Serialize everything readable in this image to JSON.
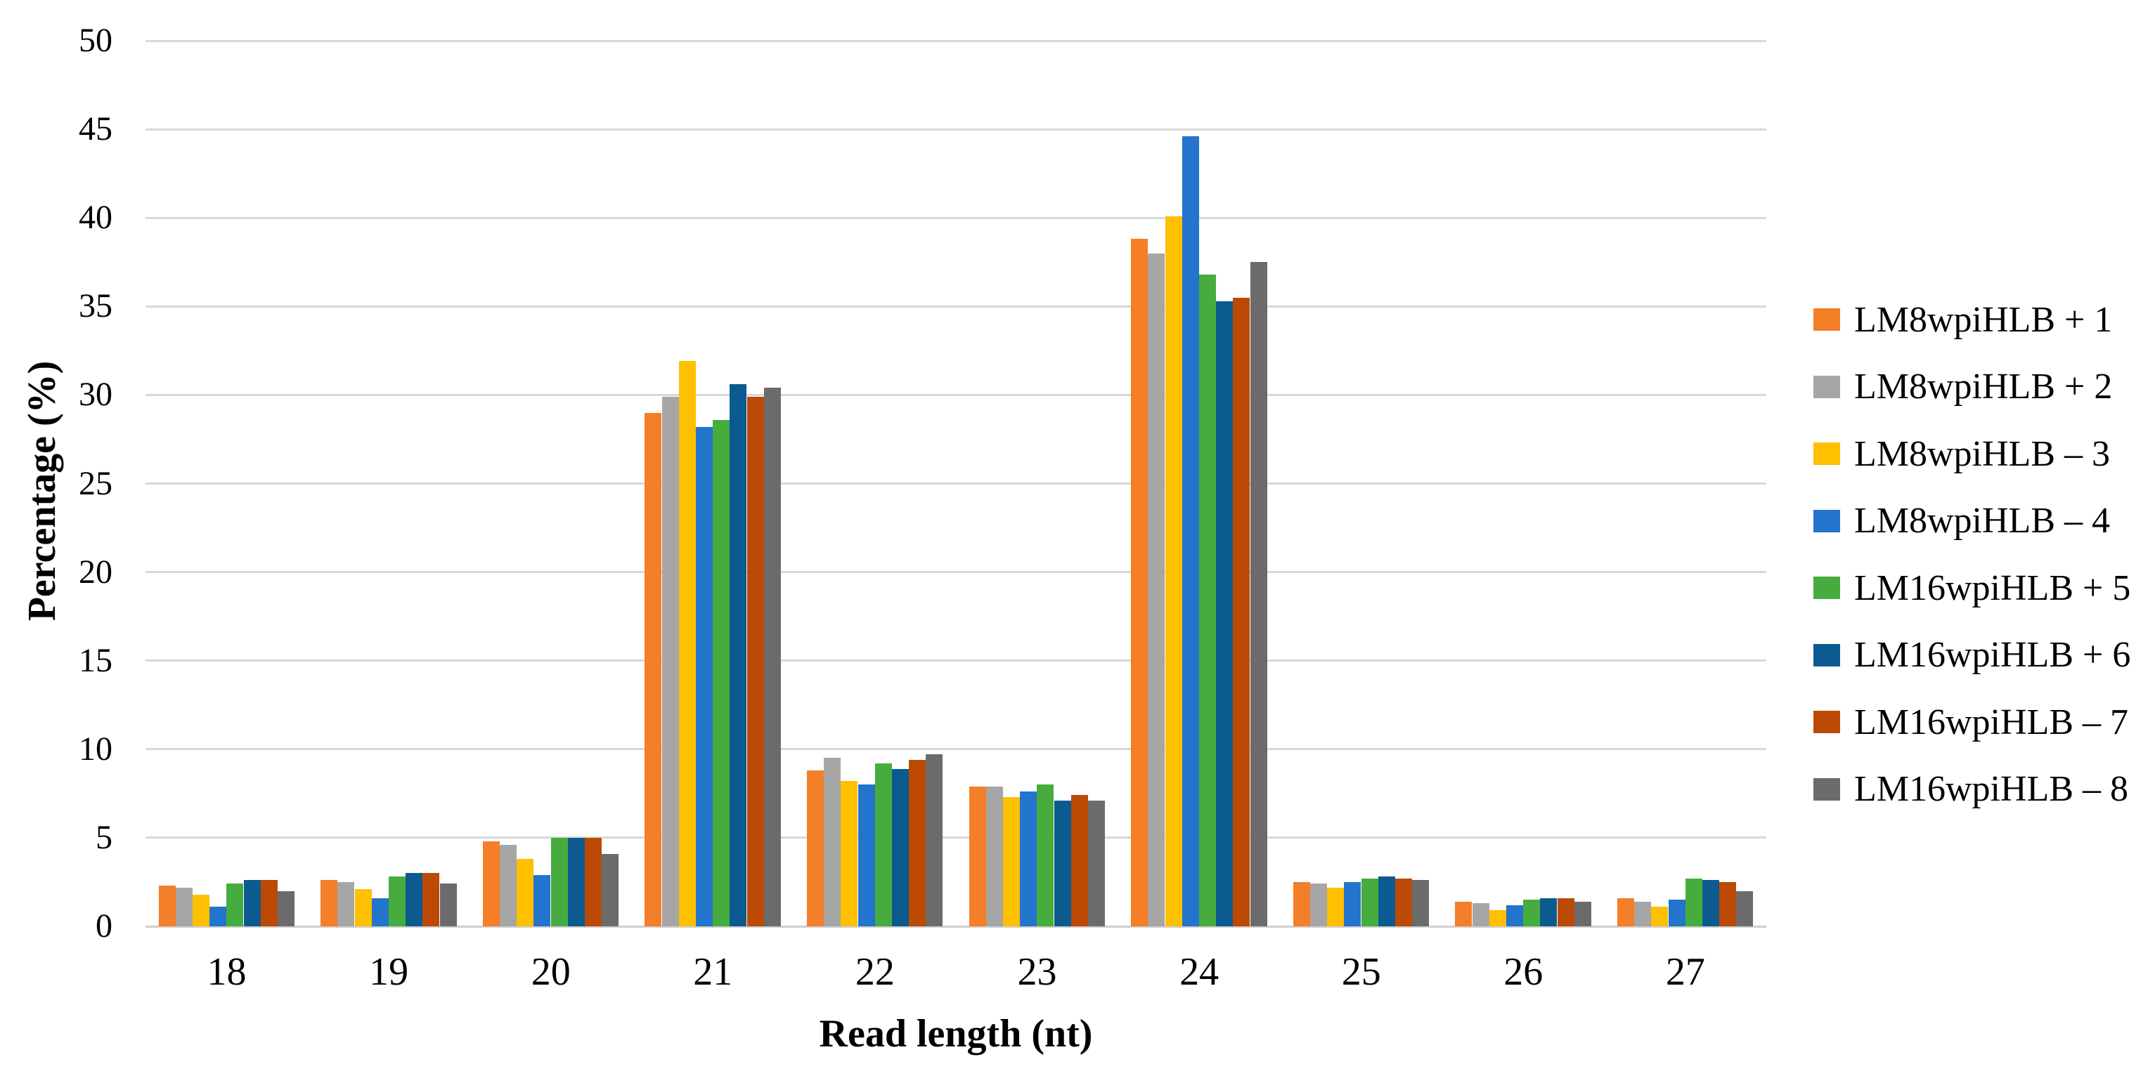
{
  "figure": {
    "background": "#ffffff",
    "gridline_color": "#d9d9d9",
    "text_color": "#000000"
  },
  "chart_data": {
    "type": "bar",
    "title": "",
    "xlabel": "Read length (nt)",
    "ylabel": "Percentage (%)",
    "ylim": [
      0,
      50
    ],
    "ytick_step": 5,
    "ytick_labels": [
      "0",
      "5",
      "10",
      "15",
      "20",
      "25",
      "30",
      "35",
      "40",
      "45",
      "50"
    ],
    "grid": true,
    "legend_position": "right",
    "categories": [
      "18",
      "19",
      "20",
      "21",
      "22",
      "23",
      "24",
      "25",
      "26",
      "27"
    ],
    "series": [
      {
        "name": "LM8wpiHLB + 1",
        "color": "#F57E28",
        "values": [
          2.3,
          2.6,
          4.8,
          29.0,
          8.8,
          7.9,
          38.8,
          2.5,
          1.4,
          1.6
        ]
      },
      {
        "name": "LM8wpiHLB + 2",
        "color": "#A6A6A6",
        "values": [
          2.2,
          2.5,
          4.6,
          29.9,
          9.5,
          7.9,
          38.0,
          2.4,
          1.3,
          1.4
        ]
      },
      {
        "name": "LM8wpiHLB – 3",
        "color": "#FFC000",
        "values": [
          1.8,
          2.1,
          3.8,
          31.9,
          8.2,
          7.3,
          40.1,
          2.2,
          0.9,
          1.1
        ]
      },
      {
        "name": "LM8wpiHLB – 4",
        "color": "#2374CC",
        "values": [
          1.1,
          1.6,
          2.9,
          28.2,
          8.0,
          7.6,
          44.6,
          2.5,
          1.2,
          1.5
        ]
      },
      {
        "name": "LM16wpiHLB + 5",
        "color": "#47AC3E",
        "values": [
          2.4,
          2.8,
          5.0,
          28.6,
          9.2,
          8.0,
          36.8,
          2.7,
          1.5,
          2.7
        ]
      },
      {
        "name": "LM16wpiHLB + 6",
        "color": "#0B5A90",
        "values": [
          2.6,
          3.0,
          5.0,
          30.6,
          8.9,
          7.1,
          35.3,
          2.8,
          1.6,
          2.6
        ]
      },
      {
        "name": "LM16wpiHLB – 7",
        "color": "#BC4A04",
        "values": [
          2.6,
          3.0,
          5.0,
          29.9,
          9.4,
          7.4,
          35.5,
          2.7,
          1.6,
          2.5
        ]
      },
      {
        "name": "LM16wpiHLB – 8",
        "color": "#6B6B6B",
        "values": [
          2.0,
          2.4,
          4.1,
          30.4,
          9.7,
          7.1,
          37.5,
          2.6,
          1.4,
          2.0
        ]
      }
    ]
  }
}
